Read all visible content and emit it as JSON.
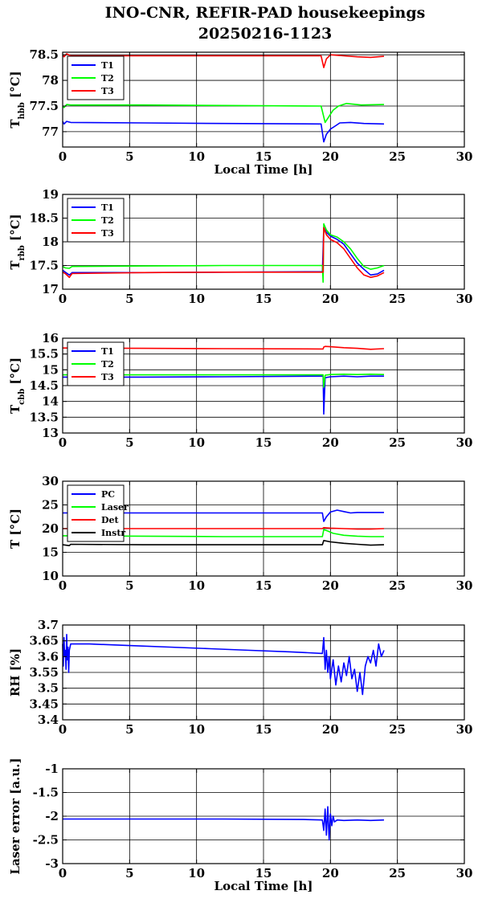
{
  "title": {
    "line1": "INO-CNR, REFIR-PAD housekeepings",
    "line2": "20250216-1123"
  },
  "chart_data": [
    {
      "type": "line",
      "ylabel": "T",
      "ylabel_sub": "hbb",
      "ylabel_unit": " [°C]",
      "xlabel": "Local Time [h]",
      "xlim": [
        0,
        30
      ],
      "ylim": [
        76.7,
        78.55
      ],
      "xticks": [
        0,
        5,
        10,
        15,
        20,
        25,
        30
      ],
      "yticks": [
        77,
        77.5,
        78,
        78.5
      ],
      "grid": true,
      "legend": "top-left",
      "series": [
        {
          "name": "T1",
          "color": "#0000ff",
          "x": [
            0,
            0.1,
            0.3,
            0.6,
            6,
            12,
            19.3,
            19.5,
            19.7,
            20.0,
            20.3,
            20.7,
            21.5,
            22.5,
            24
          ],
          "y": [
            77.2,
            77.15,
            77.2,
            77.18,
            77.17,
            77.16,
            77.15,
            76.8,
            76.95,
            77.05,
            77.1,
            77.17,
            77.18,
            77.16,
            77.15
          ]
        },
        {
          "name": "T2",
          "color": "#00ff00",
          "x": [
            0,
            0.1,
            0.3,
            0.6,
            6,
            12,
            19.3,
            19.6,
            19.9,
            20.2,
            20.6,
            21.2,
            22.3,
            24
          ],
          "y": [
            77.5,
            77.47,
            77.53,
            77.52,
            77.52,
            77.51,
            77.5,
            77.18,
            77.3,
            77.42,
            77.5,
            77.55,
            77.52,
            77.53
          ]
        },
        {
          "name": "T3",
          "color": "#ff0000",
          "x": [
            0,
            0.1,
            0.3,
            0.6,
            6,
            12,
            19.3,
            19.5,
            19.7,
            20.0,
            21.0,
            22.0,
            23.0,
            24
          ],
          "y": [
            78.5,
            78.46,
            78.52,
            78.48,
            78.48,
            78.48,
            78.48,
            78.25,
            78.42,
            78.5,
            78.48,
            78.46,
            78.45,
            78.47
          ]
        }
      ]
    },
    {
      "type": "line",
      "ylabel": "T",
      "ylabel_sub": "rbb",
      "ylabel_unit": " [°C]",
      "xlabel": "",
      "xlim": [
        0,
        30
      ],
      "ylim": [
        17,
        19
      ],
      "xticks": [
        0,
        5,
        10,
        15,
        20,
        25,
        30
      ],
      "yticks": [
        17,
        17.5,
        18,
        18.5,
        19
      ],
      "grid": true,
      "legend": "top-left",
      "series": [
        {
          "name": "T1",
          "color": "#0000ff",
          "x": [
            0,
            0.2,
            0.5,
            0.7,
            6,
            12,
            19.4,
            19.5,
            19.7,
            20.0,
            20.5,
            21.0,
            21.5,
            22.0,
            22.5,
            23.0,
            23.5,
            24
          ],
          "y": [
            17.4,
            17.36,
            17.3,
            17.35,
            17.35,
            17.36,
            17.37,
            18.3,
            18.2,
            18.12,
            18.05,
            17.95,
            17.75,
            17.55,
            17.42,
            17.3,
            17.32,
            17.4
          ]
        },
        {
          "name": "T2",
          "color": "#00ff00",
          "x": [
            0,
            0.2,
            0.5,
            0.7,
            6,
            12,
            19.4,
            19.45,
            19.5,
            19.7,
            20.0,
            20.5,
            21.0,
            21.5,
            22.0,
            22.5,
            23.0,
            23.5,
            24
          ],
          "y": [
            17.48,
            17.45,
            17.44,
            17.48,
            17.49,
            17.5,
            17.5,
            17.15,
            18.38,
            18.25,
            18.15,
            18.1,
            18.0,
            17.85,
            17.65,
            17.48,
            17.42,
            17.45,
            17.5
          ]
        },
        {
          "name": "T3",
          "color": "#ff0000",
          "x": [
            0,
            0.2,
            0.5,
            0.7,
            6,
            12,
            19.4,
            19.45,
            19.5,
            19.7,
            20.0,
            20.5,
            21.0,
            21.5,
            22.0,
            22.5,
            23.0,
            23.5,
            24
          ],
          "y": [
            17.36,
            17.33,
            17.25,
            17.33,
            17.35,
            17.36,
            17.36,
            17.36,
            18.3,
            18.15,
            18.05,
            17.98,
            17.85,
            17.65,
            17.45,
            17.3,
            17.25,
            17.28,
            17.35
          ]
        }
      ]
    },
    {
      "type": "line",
      "ylabel": "T",
      "ylabel_sub": "cbb",
      "ylabel_unit": " [°C]",
      "xlabel": "",
      "xlim": [
        0,
        30
      ],
      "ylim": [
        13,
        16
      ],
      "xticks": [
        0,
        5,
        10,
        15,
        20,
        25,
        30
      ],
      "yticks": [
        13,
        13.5,
        14,
        14.5,
        15,
        15.5,
        16
      ],
      "grid": true,
      "legend": "top-left",
      "series": [
        {
          "name": "T1",
          "color": "#0000ff",
          "x": [
            0,
            6,
            12,
            19.3,
            19.45,
            19.5,
            19.6,
            20.0,
            21.0,
            22.0,
            23.0,
            24
          ],
          "y": [
            14.77,
            14.77,
            14.78,
            14.8,
            14.8,
            13.6,
            14.75,
            14.78,
            14.8,
            14.78,
            14.8,
            14.8
          ]
        },
        {
          "name": "T2",
          "color": "#00ff00",
          "x": [
            0,
            6,
            12,
            19.3,
            19.45,
            19.5,
            19.6,
            20.0,
            21.0,
            22.0,
            23.0,
            24
          ],
          "y": [
            14.84,
            14.84,
            14.84,
            14.84,
            14.84,
            14.45,
            14.83,
            14.85,
            14.86,
            14.85,
            14.86,
            14.85
          ]
        },
        {
          "name": "T3",
          "color": "#ff0000",
          "x": [
            0,
            6,
            12,
            19.3,
            19.45,
            19.5,
            19.6,
            20.0,
            21.0,
            22.0,
            23.0,
            24
          ],
          "y": [
            15.69,
            15.68,
            15.67,
            15.66,
            15.66,
            15.72,
            15.74,
            15.73,
            15.7,
            15.68,
            15.65,
            15.67
          ]
        }
      ]
    },
    {
      "type": "line",
      "ylabel": "T [°C]",
      "ylabel_sub": "",
      "ylabel_unit": "",
      "xlabel": "",
      "xlim": [
        0,
        30
      ],
      "ylim": [
        10,
        30
      ],
      "xticks": [
        0,
        5,
        10,
        15,
        20,
        25,
        30
      ],
      "yticks": [
        10,
        15,
        20,
        25,
        30
      ],
      "grid": true,
      "legend": "top-left",
      "series": [
        {
          "name": "PC",
          "color": "#0000ff",
          "x": [
            0,
            6,
            12,
            19.4,
            19.5,
            19.7,
            20.0,
            20.5,
            21.0,
            21.5,
            22.0,
            23.0,
            24
          ],
          "y": [
            23.3,
            23.3,
            23.3,
            23.3,
            21.5,
            22.5,
            23.5,
            23.9,
            23.6,
            23.3,
            23.4,
            23.4,
            23.4
          ]
        },
        {
          "name": "Laser",
          "color": "#00ff00",
          "x": [
            0,
            6,
            12,
            19.4,
            19.5,
            19.8,
            20.2,
            21.0,
            22.0,
            23.0,
            24
          ],
          "y": [
            18.5,
            18.4,
            18.3,
            18.3,
            19.8,
            19.5,
            19.0,
            18.6,
            18.4,
            18.3,
            18.3
          ]
        },
        {
          "name": "Det",
          "color": "#ff0000",
          "x": [
            0,
            6,
            12,
            19.4,
            19.5,
            20.0,
            21.0,
            22.0,
            23.0,
            24
          ],
          "y": [
            20.0,
            20.0,
            20.0,
            20.0,
            20.2,
            20.1,
            20.0,
            19.9,
            19.9,
            20.0
          ]
        },
        {
          "name": "Instr",
          "color": "#000000",
          "x": [
            0,
            0.5,
            0.6,
            6,
            12,
            19.4,
            19.5,
            20.0,
            21.0,
            22.0,
            23.0,
            24
          ],
          "y": [
            16.6,
            16.4,
            16.7,
            16.6,
            16.6,
            16.6,
            17.5,
            17.2,
            16.9,
            16.7,
            16.5,
            16.6
          ]
        }
      ]
    },
    {
      "type": "line",
      "ylabel": "RH [%]",
      "ylabel_sub": "",
      "ylabel_unit": "",
      "xlabel": "",
      "xlim": [
        0,
        30
      ],
      "ylim": [
        3.4,
        3.7
      ],
      "xticks": [
        0,
        5,
        10,
        15,
        20,
        25,
        30
      ],
      "yticks": [
        3.4,
        3.45,
        3.5,
        3.55,
        3.6,
        3.65,
        3.7
      ],
      "grid": true,
      "legend": "",
      "series": [
        {
          "name": "",
          "color": "#0000ff",
          "x": [
            0,
            0.05,
            0.1,
            0.15,
            0.2,
            0.25,
            0.3,
            0.35,
            0.4,
            0.45,
            0.5,
            0.6,
            2,
            5,
            8,
            11,
            14,
            17,
            19.4,
            19.5,
            19.6,
            19.7,
            19.8,
            19.9,
            20.0,
            20.2,
            20.4,
            20.6,
            20.8,
            21.0,
            21.2,
            21.4,
            21.6,
            21.8,
            22.0,
            22.2,
            22.4,
            22.6,
            22.8,
            23.0,
            23.2,
            23.4,
            23.6,
            23.8,
            24
          ],
          "y": [
            3.64,
            3.57,
            3.66,
            3.6,
            3.62,
            3.56,
            3.67,
            3.59,
            3.63,
            3.55,
            3.62,
            3.64,
            3.64,
            3.635,
            3.63,
            3.625,
            3.62,
            3.615,
            3.61,
            3.66,
            3.56,
            3.62,
            3.55,
            3.6,
            3.53,
            3.59,
            3.51,
            3.57,
            3.52,
            3.58,
            3.54,
            3.6,
            3.53,
            3.56,
            3.49,
            3.55,
            3.48,
            3.57,
            3.6,
            3.58,
            3.62,
            3.57,
            3.64,
            3.6,
            3.62
          ]
        }
      ]
    },
    {
      "type": "line",
      "ylabel": "Laser error [a.u.]",
      "ylabel_sub": "",
      "ylabel_unit": "",
      "xlabel": "Local Time [h]",
      "xlim": [
        0,
        30
      ],
      "ylim": [
        -3,
        -1
      ],
      "xticks": [
        0,
        5,
        10,
        15,
        20,
        25,
        30
      ],
      "yticks": [
        -3,
        -2.5,
        -2,
        -1.5,
        -1
      ],
      "grid": true,
      "legend": "",
      "series": [
        {
          "name": "",
          "color": "#0000ff",
          "x": [
            0,
            6,
            12,
            18,
            19.4,
            19.5,
            19.6,
            19.7,
            19.8,
            19.9,
            20.0,
            20.1,
            20.2,
            20.3,
            20.5,
            21.0,
            22.0,
            23.0,
            24
          ],
          "y": [
            -2.06,
            -2.06,
            -2.06,
            -2.07,
            -2.08,
            -2.3,
            -1.85,
            -2.4,
            -1.8,
            -2.5,
            -1.95,
            -2.2,
            -2.0,
            -2.12,
            -2.08,
            -2.09,
            -2.08,
            -2.09,
            -2.08
          ]
        }
      ]
    }
  ]
}
